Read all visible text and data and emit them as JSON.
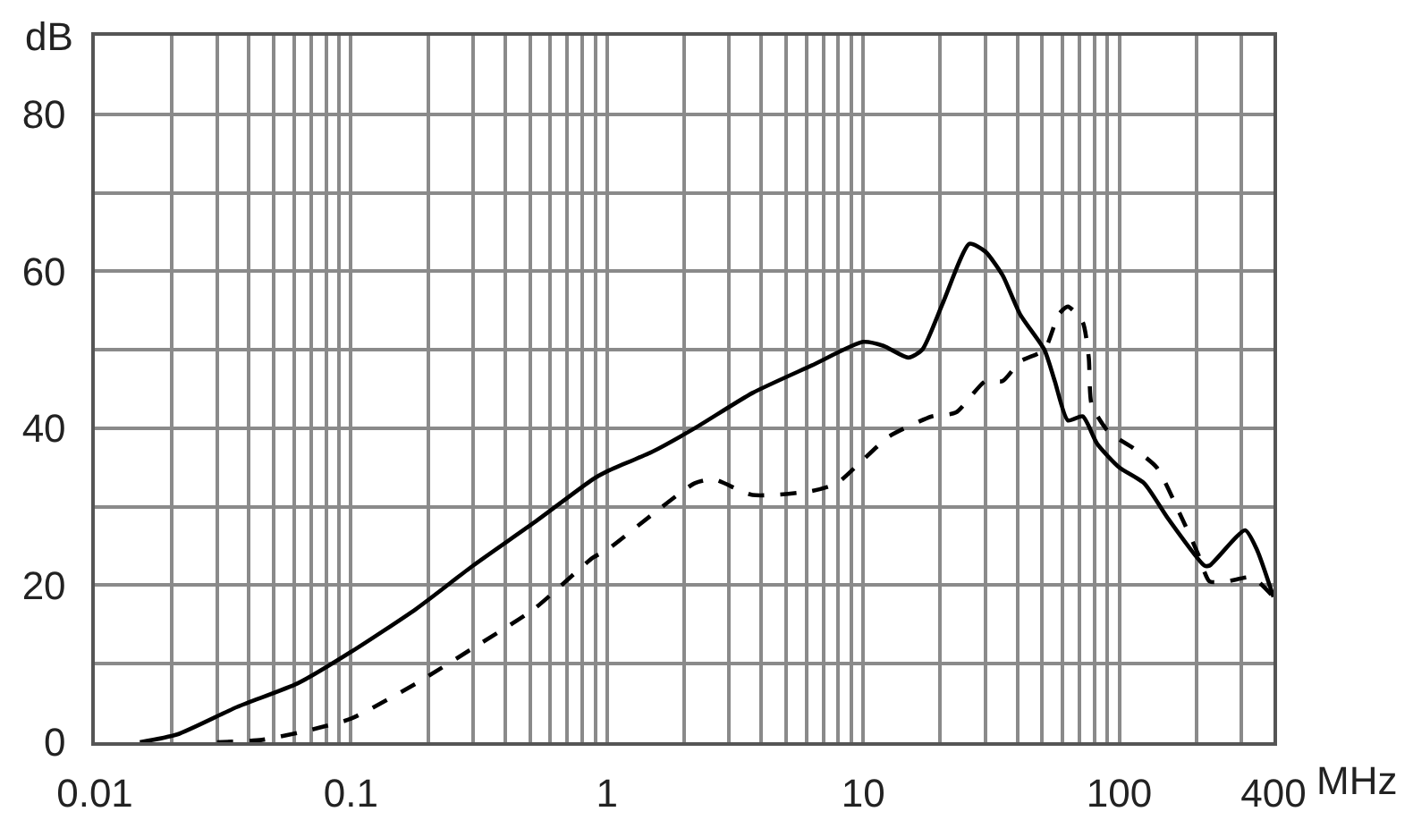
{
  "chart_data": {
    "type": "line",
    "xlabel": "MHz",
    "ylabel": "dB",
    "log": "x",
    "grid": true,
    "xlim": [
      0.01,
      400
    ],
    "ylim": [
      0,
      90
    ],
    "xticks": [
      0.01,
      {
        "value": 0.02,
        "label": null
      },
      {
        "value": 0.03,
        "label": null
      },
      {
        "value": 0.04,
        "label": null
      },
      {
        "value": 0.05,
        "label": null
      },
      {
        "value": 0.06,
        "label": null
      },
      {
        "value": 0.07,
        "label": null
      },
      {
        "value": 0.08,
        "label": null
      },
      {
        "value": 0.09,
        "label": null
      },
      0.1,
      {
        "value": 0.2,
        "label": null
      },
      {
        "value": 0.3,
        "label": null
      },
      {
        "value": 0.4,
        "label": null
      },
      {
        "value": 0.5,
        "label": null
      },
      {
        "value": 0.6,
        "label": null
      },
      {
        "value": 0.7,
        "label": null
      },
      {
        "value": 0.8,
        "label": null
      },
      {
        "value": 0.9,
        "label": null
      },
      1,
      {
        "value": 2,
        "label": null
      },
      {
        "value": 3,
        "label": null
      },
      {
        "value": 4,
        "label": null
      },
      {
        "value": 5,
        "label": null
      },
      {
        "value": 6,
        "label": null
      },
      {
        "value": 7,
        "label": null
      },
      {
        "value": 8,
        "label": null
      },
      {
        "value": 9,
        "label": null
      },
      10,
      {
        "value": 20,
        "label": null
      },
      {
        "value": 30,
        "label": null
      },
      {
        "value": 40,
        "label": null
      },
      {
        "value": 50,
        "label": null
      },
      {
        "value": 60,
        "label": null
      },
      {
        "value": 70,
        "label": null
      },
      {
        "value": 80,
        "label": null
      },
      {
        "value": 90,
        "label": null
      },
      100,
      {
        "value": 200,
        "label": null
      },
      {
        "value": 300,
        "label": null
      },
      400
    ],
    "yticks": [
      0,
      {
        "value": 10,
        "label": null
      },
      20,
      {
        "value": 30,
        "label": null
      },
      40,
      {
        "value": 50,
        "label": null
      },
      60,
      {
        "value": 70,
        "label": null
      },
      80
    ],
    "series": [
      {
        "color": "#000000",
        "line_style": "solid",
        "x": [
          0.015,
          0.021,
          0.036,
          0.062,
          0.1,
          0.18,
          0.3,
          0.52,
          0.88,
          1,
          1.5,
          2.2,
          3.7,
          6.3,
          10,
          12,
          15,
          17,
          20.5,
          26,
          30,
          35,
          41,
          51,
          56,
          63,
          72,
          82,
          100,
          125,
          155,
          215,
          225,
          310,
          345,
          400
        ],
        "values": [
          0,
          1,
          4.5,
          7.5,
          11.5,
          17,
          22.5,
          28,
          33.5,
          34.5,
          37,
          40,
          44.5,
          48,
          51,
          50.5,
          49,
          50,
          56,
          63.5,
          62.5,
          59.5,
          54.5,
          50,
          46,
          41,
          41.5,
          38,
          35,
          33,
          28.5,
          22.5,
          22.5,
          27,
          24.5,
          18.5
        ]
      },
      {
        "color": "#000000",
        "line_style": "dashed",
        "x": [
          0.03,
          0.045,
          0.068,
          0.1,
          0.18,
          0.3,
          0.52,
          0.88,
          1,
          1.5,
          2.2,
          2.6,
          3.7,
          6.3,
          7.9,
          10,
          12.7,
          18.5,
          23,
          30,
          35,
          41,
          51,
          58,
          63,
          72,
          76,
          78,
          91,
          113,
          140,
          173,
          203,
          225,
          265,
          330,
          400
        ],
        "values": [
          0,
          0.3,
          1.5,
          3,
          7.5,
          12,
          17,
          23.5,
          24.5,
          29,
          33,
          33.5,
          31.5,
          32,
          33,
          36,
          39,
          41.5,
          42,
          46,
          46,
          48.5,
          50,
          54.5,
          55.5,
          53.5,
          49,
          43,
          39.5,
          37.5,
          35,
          29,
          24,
          20.5,
          20.5,
          21,
          18.5
        ]
      }
    ]
  }
}
